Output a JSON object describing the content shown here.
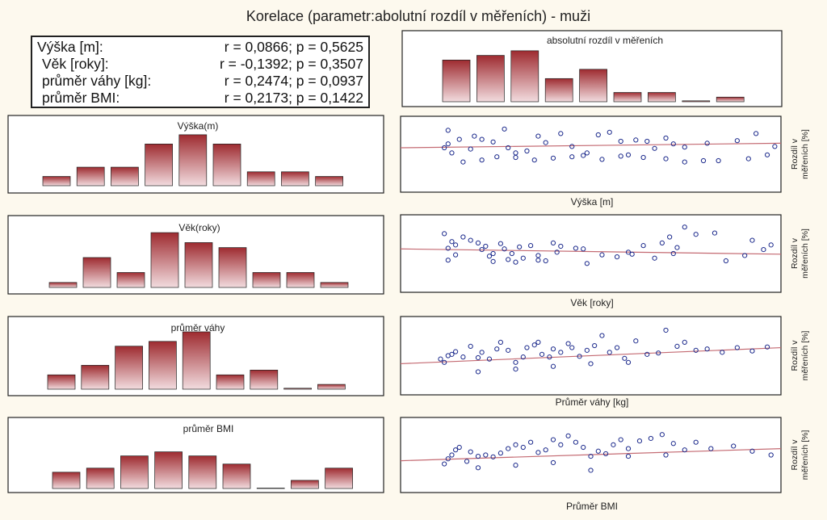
{
  "title": "Korelace (parametr:abolutní rozdíl v měřeních) - muži",
  "stats": [
    {
      "label": "Výška [m]:",
      "value": "r = 0,0866; p = 0,5625"
    },
    {
      "label": "Věk [roky]:",
      "value": "r = -0,1392; p = 0,3507"
    },
    {
      "label": "průměr váhy [kg]:",
      "value": "r = 0,2474; p = 0,0937"
    },
    {
      "label": "průměr BMI:",
      "value": "r = 0,2173; p = 0,1422"
    }
  ],
  "side_label": {
    "line1": "Rozdíl v",
    "line2": "měřeních [%]"
  },
  "chart_data": [
    {
      "type": "bar",
      "title": "absolutní rozdíl v měřeních",
      "values": [
        9,
        10,
        11,
        5,
        7,
        2,
        2,
        0.2,
        1
      ],
      "ylim": [
        0,
        11.5
      ]
    },
    {
      "type": "bar",
      "title": "Výška(m)",
      "values": [
        2,
        4,
        4,
        9,
        11,
        9,
        3,
        3,
        2
      ],
      "ylim": [
        0,
        11.5
      ]
    },
    {
      "type": "bar",
      "title": "Věk(roky)",
      "values": [
        1,
        6,
        3,
        11,
        9,
        8,
        3,
        3,
        1
      ],
      "ylim": [
        0,
        11.5
      ]
    },
    {
      "type": "bar",
      "title": "průměr váhy",
      "values": [
        3,
        5,
        9,
        10,
        12,
        3,
        4,
        0.2,
        1
      ],
      "ylim": [
        0,
        12.5
      ]
    },
    {
      "type": "bar",
      "title": "průměr BMI",
      "values": [
        4,
        5,
        8,
        9,
        8,
        6,
        0,
        2,
        5
      ],
      "ylim": [
        0,
        10.5
      ]
    },
    {
      "type": "scatter",
      "xlabel": "Výška [m]",
      "ylabel": "Rozdíl v měřeních [%]",
      "xlim": [
        0,
        100
      ],
      "ylim": [
        0,
        100
      ],
      "x": [
        12,
        11,
        12,
        13,
        15,
        18,
        19,
        21,
        24,
        27,
        28,
        30,
        33,
        36,
        38,
        42,
        45,
        49,
        52,
        55,
        58,
        60,
        62,
        65,
        67,
        70,
        72,
        75,
        81,
        89,
        94,
        99,
        16,
        21,
        25,
        30,
        35,
        40,
        45,
        48,
        53,
        58,
        64,
        70,
        75,
        80,
        84,
        92,
        97
      ],
      "y": [
        87,
        60,
        66,
        52,
        73,
        58,
        78,
        73,
        69,
        89,
        60,
        52,
        55,
        78,
        68,
        82,
        62,
        52,
        80,
        84,
        70,
        49,
        72,
        70,
        59,
        75,
        66,
        61,
        67,
        71,
        82,
        62,
        38,
        41,
        46,
        45,
        41,
        44,
        46,
        48,
        42,
        47,
        45,
        43,
        38,
        40,
        40,
        43,
        49
      ],
      "trend": {
        "y0": 60,
        "y1": 67
      }
    },
    {
      "type": "scatter",
      "xlabel": "Věk [roky]",
      "ylabel": "Rozdíl v měřeních [%]",
      "xlim": [
        0,
        100
      ],
      "ylim": [
        0,
        100
      ],
      "x": [
        11,
        13,
        12,
        14,
        14,
        16,
        18,
        20,
        21,
        22,
        23,
        24,
        26,
        27,
        28,
        29,
        30,
        31,
        32,
        34,
        36,
        38,
        40,
        41,
        42,
        46,
        49,
        53,
        57,
        61,
        64,
        67,
        69,
        71,
        73,
        75,
        78,
        83,
        86,
        91,
        93,
        96,
        98,
        12,
        24,
        36,
        48,
        60,
        72
      ],
      "y": [
        80,
        68,
        58,
        48,
        63,
        75,
        70,
        66,
        56,
        61,
        46,
        38,
        65,
        57,
        41,
        50,
        37,
        60,
        43,
        62,
        47,
        39,
        66,
        52,
        61,
        58,
        35,
        48,
        45,
        49,
        62,
        43,
        66,
        75,
        59,
        90,
        79,
        81,
        39,
        47,
        70,
        56,
        63,
        40,
        50,
        40,
        57,
        52,
        50
      ],
      "trend": {
        "y0": 57,
        "y1": 49
      }
    },
    {
      "type": "scatter",
      "xlabel": "Průměr váhy [kg]",
      "ylabel": "Rozdíl v měřeních [%]",
      "xlim": [
        0,
        100
      ],
      "ylim": [
        0,
        100
      ],
      "x": [
        10,
        11,
        12,
        13,
        14,
        16,
        18,
        20,
        21,
        23,
        25,
        26,
        28,
        30,
        32,
        33,
        35,
        36,
        37,
        39,
        40,
        42,
        44,
        45,
        47,
        49,
        51,
        53,
        55,
        57,
        59,
        62,
        65,
        68,
        70,
        73,
        75,
        78,
        81,
        85,
        89,
        93,
        97,
        20,
        30,
        40,
        50,
        60
      ],
      "y": [
        45,
        40,
        50,
        52,
        56,
        48,
        64,
        47,
        55,
        45,
        60,
        70,
        58,
        40,
        48,
        62,
        66,
        70,
        52,
        48,
        60,
        55,
        68,
        62,
        49,
        58,
        65,
        80,
        55,
        62,
        46,
        72,
        52,
        54,
        88,
        64,
        70,
        58,
        60,
        55,
        62,
        57,
        63,
        26,
        30,
        34,
        38,
        40
      ],
      "trend": {
        "y0": 38,
        "y1": 62
      }
    },
    {
      "type": "scatter",
      "xlabel": "Průměr BMI",
      "ylabel": "Rozdíl v měřeních [%]",
      "xlim": [
        0,
        100
      ],
      "ylim": [
        0,
        100
      ],
      "x": [
        12,
        11,
        13,
        14,
        15,
        17,
        18,
        20,
        22,
        24,
        26,
        28,
        30,
        32,
        34,
        36,
        38,
        40,
        42,
        44,
        46,
        48,
        50,
        52,
        54,
        56,
        58,
        60,
        63,
        66,
        69,
        72,
        75,
        78,
        82,
        88,
        93,
        98,
        20,
        30,
        40,
        50,
        60,
        70
      ],
      "y": [
        44,
        36,
        50,
        58,
        62,
        40,
        55,
        48,
        50,
        47,
        53,
        60,
        66,
        62,
        70,
        54,
        58,
        74,
        66,
        80,
        70,
        62,
        48,
        56,
        52,
        66,
        74,
        60,
        72,
        76,
        82,
        68,
        58,
        70,
        60,
        64,
        56,
        50,
        30,
        34,
        38,
        26,
        48,
        50
      ],
      "trend": {
        "y0": 41,
        "y1": 60
      }
    }
  ]
}
